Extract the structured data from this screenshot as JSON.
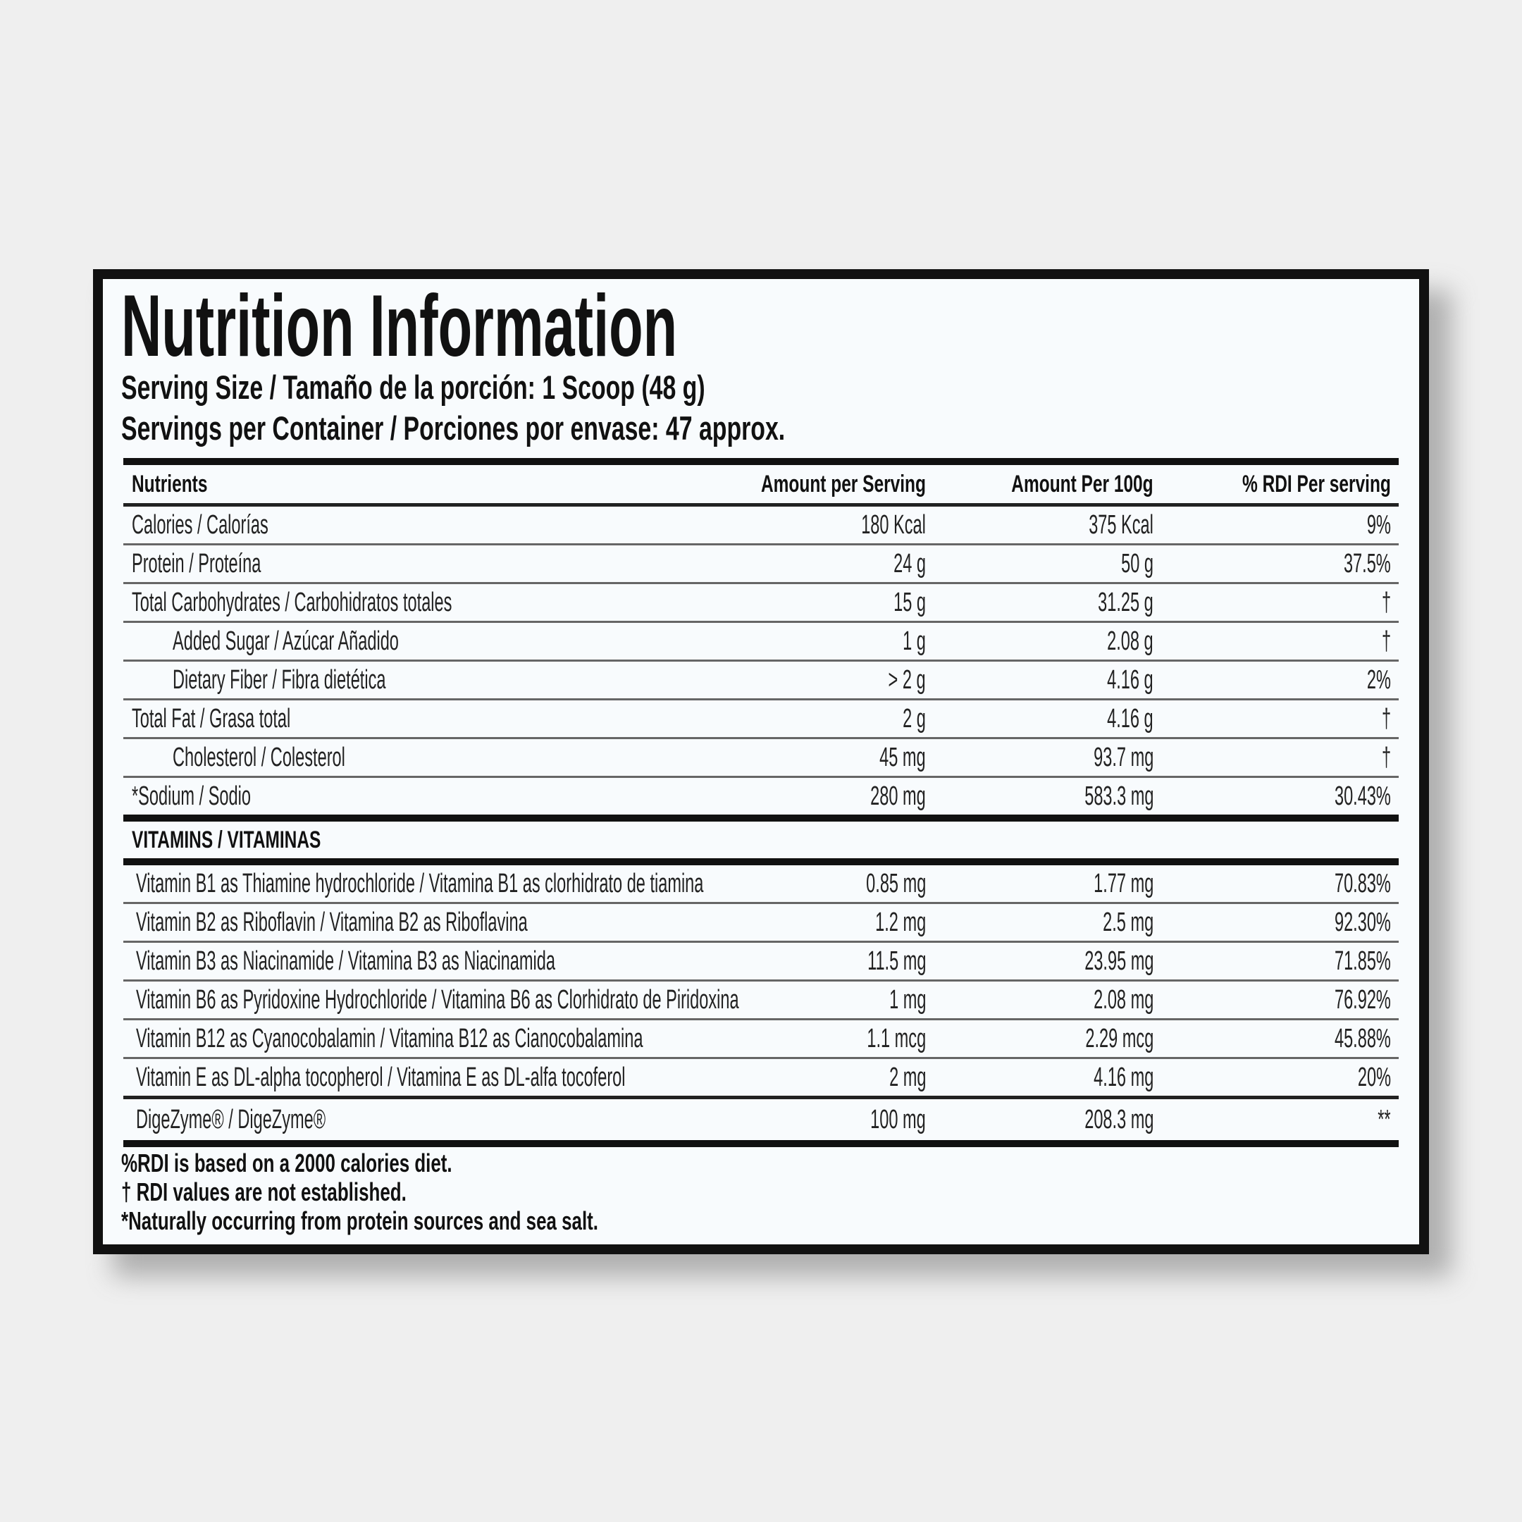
{
  "label": {
    "title": "Nutrition Information",
    "serving_size": "Serving Size / Tamaño de la porción: 1 Scoop  (48 g)",
    "servings_per_container": "Servings per Container / Porciones por envase: 47 approx."
  },
  "table": {
    "headers": [
      "Nutrients",
      "Amount per Serving",
      "Amount Per 100g",
      "% RDI Per serving"
    ],
    "rows": [
      {
        "name": "Calories / Calorías",
        "amount": "180 Kcal",
        "per100g": "375 Kcal",
        "rdi": "9%"
      },
      {
        "name": "Protein / Proteína",
        "amount": "24 g",
        "per100g": "50 g",
        "rdi": "37.5%"
      },
      {
        "name": "Total Carbohydrates / Carbohidratos totales",
        "amount": "15 g",
        "per100g": "31.25 g",
        "rdi": "†"
      },
      {
        "name": "Added Sugar / Azúcar Añadido",
        "amount": "1 g",
        "per100g": "2.08 g",
        "rdi": "†"
      },
      {
        "name": "Dietary Fiber / Fibra dietética",
        "amount": "> 2 g",
        "per100g": "4.16 g",
        "rdi": "2%"
      },
      {
        "name": "Total Fat / Grasa total",
        "amount": "2 g",
        "per100g": "4.16 g",
        "rdi": "†"
      },
      {
        "name": "Cholesterol / Colesterol",
        "amount": "45 mg",
        "per100g": "93.7 mg",
        "rdi": "†"
      },
      {
        "name": "*Sodium / Sodio",
        "amount": "280 mg",
        "per100g": "583.3 mg",
        "rdi": "30.43%"
      }
    ],
    "vitamins_header": "VITAMINS / VITAMINAS",
    "vitamins": [
      {
        "name": "Vitamin B1 as Thiamine hydrochloride / Vitamina B1 as clorhidrato de tiamina",
        "amount": "0.85 mg",
        "per100g": "1.77 mg",
        "rdi": "70.83%"
      },
      {
        "name": "Vitamin B2 as Riboflavin / Vitamina B2 as Riboflavina",
        "amount": "1.2 mg",
        "per100g": "2.5 mg",
        "rdi": "92.30%"
      },
      {
        "name": "Vitamin B3 as Niacinamide / Vitamina B3 as Niacinamida",
        "amount": "11.5 mg",
        "per100g": "23.95 mg",
        "rdi": "71.85%"
      },
      {
        "name": "Vitamin B6 as Pyridoxine Hydrochloride / Vitamina B6 as Clorhidrato de Piridoxina",
        "amount": "1 mg",
        "per100g": "2.08 mg",
        "rdi": "76.92%"
      },
      {
        "name": "Vitamin B12 as Cyanocobalamin / Vitamina B12 as Cianocobalamina",
        "amount": "1.1 mcg",
        "per100g": "2.29 mcg",
        "rdi": "45.88%"
      },
      {
        "name": "Vitamin E as DL-alpha tocopherol / Vitamina E as DL-alfa tocoferol",
        "amount": "2 mg",
        "per100g": "4.16 mg",
        "rdi": "20%"
      },
      {
        "name": "DigeZyme® / DigeZyme®",
        "amount": "100 mg",
        "per100g": "208.3 mg",
        "rdi": "**"
      }
    ]
  },
  "footnotes": [
    "%RDI is based on a 2000 calories diet.",
    "† RDI values are not established.",
    "*Naturally occurring from protein sources and sea salt."
  ]
}
